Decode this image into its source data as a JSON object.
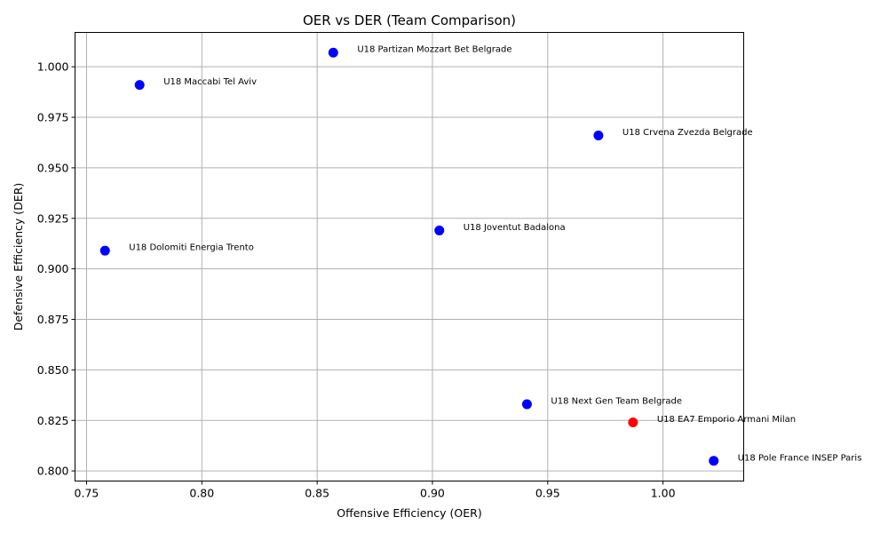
{
  "chart_data": {
    "type": "scatter",
    "title": "OER vs DER (Team Comparison)",
    "xlabel": "Offensive Efficiency (OER)",
    "ylabel": "Defensive Efficiency (DER)",
    "xlim": [
      0.745,
      1.035
    ],
    "ylim": [
      0.795,
      1.017
    ],
    "xticks": [
      0.75,
      0.8,
      0.85,
      0.9,
      0.95,
      1.0
    ],
    "xtick_labels": [
      "0.75",
      "0.80",
      "0.85",
      "0.90",
      "0.95",
      "1.00"
    ],
    "yticks": [
      0.8,
      0.825,
      0.85,
      0.875,
      0.9,
      0.925,
      0.95,
      0.975,
      1.0
    ],
    "ytick_labels": [
      "0.800",
      "0.825",
      "0.850",
      "0.875",
      "0.900",
      "0.925",
      "0.950",
      "0.975",
      "1.000"
    ],
    "grid": true,
    "colors": {
      "default": "#0000ff",
      "highlight": "#ff0000"
    },
    "points": [
      {
        "label": "U18 Partizan Mozzart Bet Belgrade",
        "x": 0.857,
        "y": 1.007,
        "highlight": false
      },
      {
        "label": "U18 Maccabi Tel Aviv",
        "x": 0.773,
        "y": 0.991,
        "highlight": false
      },
      {
        "label": "U18 Crvena Zvezda Belgrade",
        "x": 0.972,
        "y": 0.966,
        "highlight": false
      },
      {
        "label": "U18 Joventut Badalona",
        "x": 0.903,
        "y": 0.919,
        "highlight": false
      },
      {
        "label": "U18 Dolomiti Energia Trento",
        "x": 0.758,
        "y": 0.909,
        "highlight": false
      },
      {
        "label": "U18 Next Gen Team Belgrade",
        "x": 0.941,
        "y": 0.833,
        "highlight": false
      },
      {
        "label": "U18 EA7 Emporio Armani Milan",
        "x": 0.987,
        "y": 0.824,
        "highlight": true
      },
      {
        "label": "U18 Pole France INSEP Paris",
        "x": 1.022,
        "y": 0.805,
        "highlight": false
      }
    ]
  }
}
